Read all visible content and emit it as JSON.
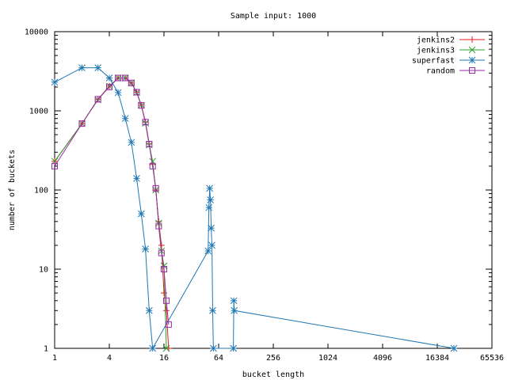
{
  "chart_data": {
    "type": "line",
    "title": "Sample input: 1000",
    "xlabel": "bucket length",
    "ylabel": "number of buckets",
    "x_scale": "log2",
    "y_scale": "log10",
    "xlim": [
      1,
      65536
    ],
    "ylim": [
      1,
      10000
    ],
    "x_ticks": [
      {
        "value": 1,
        "label": "1"
      },
      {
        "value": 4,
        "label": "4"
      },
      {
        "value": 16,
        "label": "16"
      },
      {
        "value": 64,
        "label": "64"
      },
      {
        "value": 256,
        "label": "256"
      },
      {
        "value": 1024,
        "label": "1024"
      },
      {
        "value": 4096,
        "label": "4096"
      },
      {
        "value": 16384,
        "label": "16384"
      },
      {
        "value": 65536,
        "label": "65536"
      }
    ],
    "y_ticks": [
      {
        "value": 1,
        "label": "1"
      },
      {
        "value": 10,
        "label": "10"
      },
      {
        "value": 100,
        "label": "100"
      },
      {
        "value": 1000,
        "label": "1000"
      },
      {
        "value": 10000,
        "label": "10000"
      }
    ],
    "grid": false,
    "legend_position": "top-right",
    "series": [
      {
        "name": "jenkins2",
        "color": "#e41a1c",
        "marker": "plus",
        "points": [
          [
            1,
            230
          ],
          [
            2,
            690
          ],
          [
            3,
            1400
          ],
          [
            4,
            2050
          ],
          [
            5,
            2600
          ],
          [
            6,
            2600
          ],
          [
            7,
            2250
          ],
          [
            8,
            1720
          ],
          [
            9,
            1180
          ],
          [
            10,
            720
          ],
          [
            11,
            380
          ],
          [
            12,
            210
          ],
          [
            13,
            100
          ],
          [
            14,
            40
          ],
          [
            15,
            20
          ],
          [
            16,
            5
          ],
          [
            17,
            3
          ],
          [
            18,
            1
          ]
        ]
      },
      {
        "name": "jenkins3",
        "color": "#2ca02c",
        "marker": "cross",
        "points": [
          [
            1,
            230
          ],
          [
            2,
            690
          ],
          [
            3,
            1380
          ],
          [
            4,
            2050
          ],
          [
            5,
            2600
          ],
          [
            6,
            2600
          ],
          [
            7,
            2250
          ],
          [
            8,
            1700
          ],
          [
            9,
            1180
          ],
          [
            10,
            700
          ],
          [
            11,
            370
          ],
          [
            12,
            230
          ],
          [
            13,
            100
          ],
          [
            14,
            38
          ],
          [
            15,
            17
          ],
          [
            16,
            11
          ],
          [
            17,
            1
          ]
        ]
      },
      {
        "name": "superfast",
        "color": "#1f77b4",
        "marker": "star",
        "points": [
          [
            1,
            2300
          ],
          [
            2,
            3500
          ],
          [
            3,
            3500
          ],
          [
            4,
            2600
          ],
          [
            5,
            1700
          ],
          [
            6,
            800
          ],
          [
            7,
            400
          ],
          [
            8,
            140
          ],
          [
            9,
            50
          ],
          [
            10,
            18
          ],
          [
            11,
            3
          ],
          [
            12,
            1
          ],
          [
            49,
            17
          ],
          [
            50,
            60
          ],
          [
            51,
            105
          ],
          [
            52,
            75
          ],
          [
            53,
            33
          ],
          [
            54,
            20
          ],
          [
            55,
            3
          ],
          [
            56,
            1
          ],
          [
            93,
            1
          ],
          [
            94,
            4
          ],
          [
            95,
            3
          ],
          [
            25000,
            1
          ]
        ]
      },
      {
        "name": "random",
        "color": "#9a2aa6",
        "marker": "square",
        "points": [
          [
            1,
            200
          ],
          [
            2,
            690
          ],
          [
            3,
            1400
          ],
          [
            4,
            2000
          ],
          [
            5,
            2600
          ],
          [
            6,
            2600
          ],
          [
            7,
            2250
          ],
          [
            8,
            1720
          ],
          [
            9,
            1170
          ],
          [
            10,
            720
          ],
          [
            11,
            380
          ],
          [
            12,
            200
          ],
          [
            13,
            105
          ],
          [
            14,
            35
          ],
          [
            15,
            16
          ],
          [
            16,
            10
          ],
          [
            17,
            4
          ],
          [
            18,
            2
          ]
        ]
      }
    ]
  }
}
